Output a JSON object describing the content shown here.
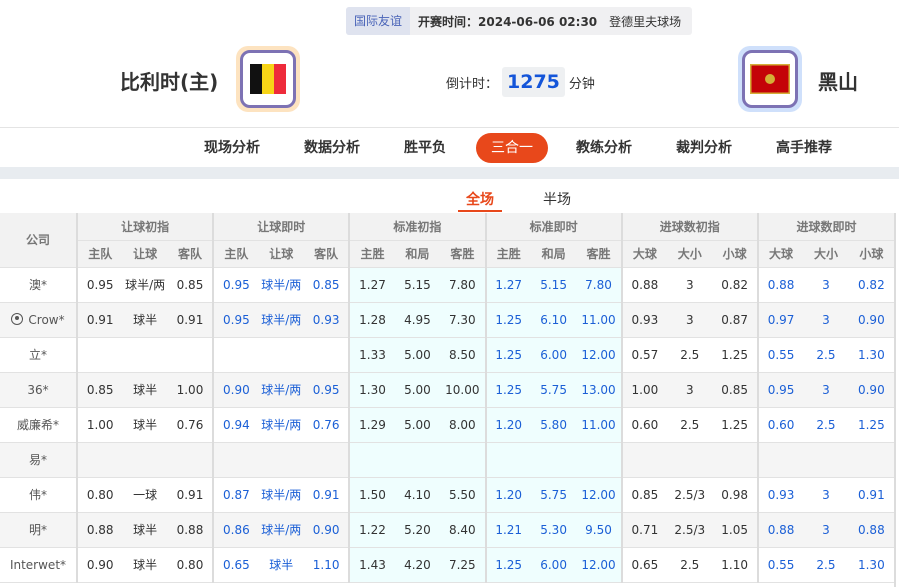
{
  "match": {
    "league": "国际友谊",
    "kickoff": "开赛时间：2024-06-06 02:30",
    "venue": "登德里夫球场",
    "home": "比利时(主)",
    "away": "黑山",
    "countdown_label": "倒计时：",
    "countdown_value": "1275",
    "countdown_unit": "分钟",
    "home_flag": "belgium-flag",
    "away_flag": "montenegro-flag"
  },
  "nav": {
    "items": [
      "现场分析",
      "数据分析",
      "胜平负",
      "三合一",
      "教练分析",
      "裁判分析",
      "高手推荐"
    ],
    "active": "三合一"
  },
  "subtabs": {
    "items": [
      "全场",
      "半场"
    ],
    "active": "全场"
  },
  "colors": {
    "accent": "#e8481b",
    "live": "#1b5fd6"
  },
  "table": {
    "company_header": "公司",
    "groups": [
      "让球初指",
      "让球即时",
      "标准初指",
      "标准即时",
      "进球数初指",
      "进球数即时"
    ],
    "subheaders": [
      [
        "主队",
        "让球",
        "客队"
      ],
      [
        "主队",
        "让球",
        "客队"
      ],
      [
        "主胜",
        "和局",
        "客胜"
      ],
      [
        "主胜",
        "和局",
        "客胜"
      ],
      [
        "大球",
        "大小",
        "小球"
      ],
      [
        "大球",
        "大小",
        "小球"
      ]
    ],
    "rows": [
      {
        "company": "澳*",
        "v": [
          [
            "0.95",
            "球半/两",
            "0.85"
          ],
          [
            "0.95",
            "球半/两",
            "0.85"
          ],
          [
            "1.27",
            "5.15",
            "7.80"
          ],
          [
            "1.27",
            "5.15",
            "7.80"
          ],
          [
            "0.88",
            "3",
            "0.82"
          ],
          [
            "0.88",
            "3",
            "0.82"
          ]
        ]
      },
      {
        "company": "Crow*",
        "icon": "soccer-ball-icon",
        "v": [
          [
            "0.91",
            "球半",
            "0.91"
          ],
          [
            "0.95",
            "球半/两",
            "0.93"
          ],
          [
            "1.28",
            "4.95",
            "7.30"
          ],
          [
            "1.25",
            "6.10",
            "11.00"
          ],
          [
            "0.93",
            "3",
            "0.87"
          ],
          [
            "0.97",
            "3",
            "0.90"
          ]
        ]
      },
      {
        "company": "立*",
        "v": [
          [
            "",
            "",
            ""
          ],
          [
            "",
            "",
            ""
          ],
          [
            "1.33",
            "5.00",
            "8.50"
          ],
          [
            "1.25",
            "6.00",
            "12.00"
          ],
          [
            "0.57",
            "2.5",
            "1.25"
          ],
          [
            "0.55",
            "2.5",
            "1.30"
          ]
        ]
      },
      {
        "company": "36*",
        "v": [
          [
            "0.85",
            "球半",
            "1.00"
          ],
          [
            "0.90",
            "球半/两",
            "0.95"
          ],
          [
            "1.30",
            "5.00",
            "10.00"
          ],
          [
            "1.25",
            "5.75",
            "13.00"
          ],
          [
            "1.00",
            "3",
            "0.85"
          ],
          [
            "0.95",
            "3",
            "0.90"
          ]
        ]
      },
      {
        "company": "威廉希*",
        "v": [
          [
            "1.00",
            "球半",
            "0.76"
          ],
          [
            "0.94",
            "球半/两",
            "0.76"
          ],
          [
            "1.29",
            "5.00",
            "8.00"
          ],
          [
            "1.20",
            "5.80",
            "11.00"
          ],
          [
            "0.60",
            "2.5",
            "1.25"
          ],
          [
            "0.60",
            "2.5",
            "1.25"
          ]
        ]
      },
      {
        "company": "易*",
        "v": [
          [
            "",
            "",
            ""
          ],
          [
            "",
            "",
            ""
          ],
          [
            "",
            "",
            ""
          ],
          [
            "",
            "",
            ""
          ],
          [
            "",
            "",
            ""
          ],
          [
            "",
            "",
            ""
          ]
        ]
      },
      {
        "company": "伟*",
        "v": [
          [
            "0.80",
            "一球",
            "0.91"
          ],
          [
            "0.87",
            "球半/两",
            "0.91"
          ],
          [
            "1.50",
            "4.10",
            "5.50"
          ],
          [
            "1.20",
            "5.75",
            "12.00"
          ],
          [
            "0.85",
            "2.5/3",
            "0.98"
          ],
          [
            "0.93",
            "3",
            "0.91"
          ]
        ]
      },
      {
        "company": "明*",
        "v": [
          [
            "0.88",
            "球半",
            "0.88"
          ],
          [
            "0.86",
            "球半/两",
            "0.90"
          ],
          [
            "1.22",
            "5.20",
            "8.40"
          ],
          [
            "1.21",
            "5.30",
            "9.50"
          ],
          [
            "0.71",
            "2.5/3",
            "1.05"
          ],
          [
            "0.88",
            "3",
            "0.88"
          ]
        ]
      },
      {
        "company": "Interwet*",
        "v": [
          [
            "0.90",
            "球半",
            "0.80"
          ],
          [
            "0.65",
            "球半",
            "1.10"
          ],
          [
            "1.43",
            "4.20",
            "7.25"
          ],
          [
            "1.25",
            "6.00",
            "12.00"
          ],
          [
            "0.65",
            "2.5",
            "1.10"
          ],
          [
            "0.55",
            "2.5",
            "1.30"
          ]
        ]
      }
    ]
  }
}
